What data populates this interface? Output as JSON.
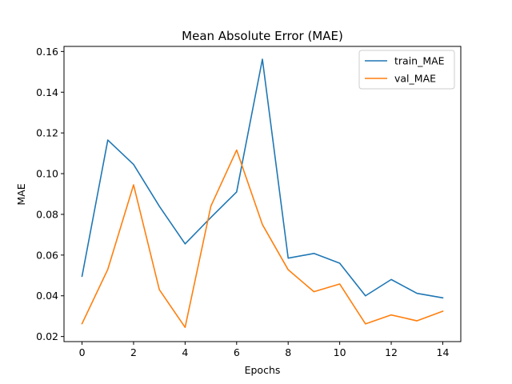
{
  "chart_data": {
    "type": "line",
    "title": "Mean Absolute Error (MAE)",
    "xlabel": "Epochs",
    "ylabel": "MAE",
    "x": [
      0,
      1,
      2,
      3,
      4,
      5,
      6,
      7,
      8,
      9,
      10,
      11,
      12,
      13,
      14
    ],
    "xticks": [
      "0",
      "2",
      "4",
      "6",
      "8",
      "10",
      "12",
      "14"
    ],
    "yticks": [
      "0.02",
      "0.04",
      "0.06",
      "0.08",
      "0.10",
      "0.12",
      "0.14",
      "0.16"
    ],
    "xlim": [
      -0.7,
      14.7
    ],
    "ylim": [
      0.0175,
      0.1625
    ],
    "grid": false,
    "legend_position": "top-right",
    "series": [
      {
        "name": "train_MAE",
        "color": "#1f77b4",
        "values": [
          0.0496,
          0.1165,
          0.1045,
          0.084,
          0.0655,
          0.0785,
          0.091,
          0.1562,
          0.0585,
          0.0608,
          0.056,
          0.04,
          0.048,
          0.0412,
          0.039
        ]
      },
      {
        "name": "val_MAE",
        "color": "#ff7f0e",
        "values": [
          0.0263,
          0.053,
          0.0945,
          0.043,
          0.0245,
          0.084,
          0.1116,
          0.075,
          0.0528,
          0.042,
          0.0458,
          0.0262,
          0.0306,
          0.0277,
          0.0324
        ]
      }
    ]
  }
}
